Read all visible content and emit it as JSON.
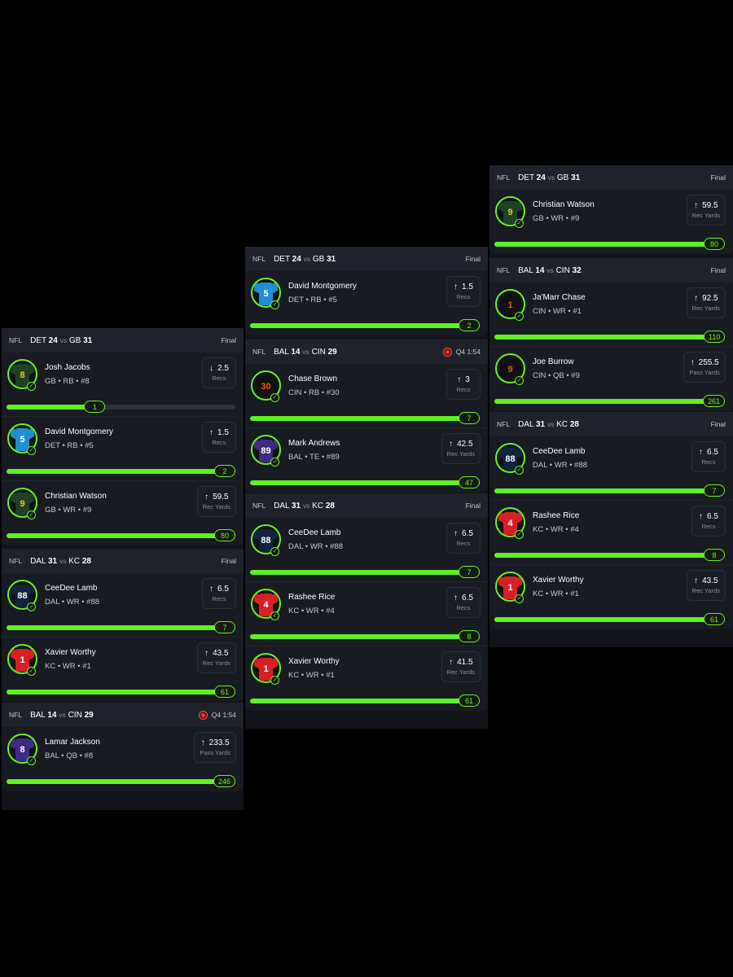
{
  "colors": {
    "background": "#000000",
    "panel": "#121419",
    "accent_green": "#6cf21d",
    "live_red": "#ff2a2a"
  },
  "columns": [
    {
      "games": [
        {
          "league": "NFL",
          "away_team": "DET",
          "away_score": "24",
          "vs": "vs",
          "home_team": "GB",
          "home_score": "31",
          "status": "Final",
          "live": false,
          "players": [
            {
              "name": "Josh Jacobs",
              "meta": "GB • RB • #8",
              "jersey_number": "8",
              "jersey_color": "#1d4227",
              "number_color": "#f5c518",
              "direction": "↓",
              "line": "2.5",
              "unit": "Recs",
              "result": "1",
              "progress": 0.4
            },
            {
              "name": "David Montgomery",
              "meta": "DET • RB • #5",
              "jersey_color": "#1e8fd1",
              "jersey_number": "5",
              "number_color": "#ffffff",
              "direction": "↑",
              "line": "1.5",
              "unit": "Recs",
              "result": "2",
              "progress": 1.0
            },
            {
              "name": "Christian Watson",
              "meta": "GB • WR • #9",
              "jersey_color": "#1d4227",
              "jersey_number": "9",
              "number_color": "#f5c518",
              "direction": "↑",
              "line": "59.5",
              "unit": "Rec Yards",
              "result": "80",
              "progress": 1.0
            }
          ]
        },
        {
          "league": "NFL",
          "away_team": "DAL",
          "away_score": "31",
          "vs": "vs",
          "home_team": "KC",
          "home_score": "28",
          "status": "Final",
          "live": false,
          "players": [
            {
              "name": "CeeDee Lamb",
              "meta": "DAL • WR • #88",
              "jersey_color": "#13233f",
              "jersey_number": "88",
              "number_color": "#ffffff",
              "direction": "↑",
              "line": "6.5",
              "unit": "Recs",
              "result": "7",
              "progress": 1.0
            },
            {
              "name": "Xavier Worthy",
              "meta": "KC • WR • #1",
              "jersey_color": "#d91f26",
              "jersey_number": "1",
              "number_color": "#ffffff",
              "direction": "↑",
              "line": "43.5",
              "unit": "Rec Yards",
              "result": "61",
              "progress": 1.0
            }
          ]
        },
        {
          "league": "NFL",
          "away_team": "BAL",
          "away_score": "14",
          "vs": "vs",
          "home_team": "CIN",
          "home_score": "29",
          "status": "Q4 1:54",
          "live": true,
          "players": [
            {
              "name": "Lamar Jackson",
              "meta": "BAL • QB • #8",
              "jersey_color": "#3f2a84",
              "jersey_number": "8",
              "number_color": "#ffffff",
              "direction": "↑",
              "line": "233.5",
              "unit": "Pass Yards",
              "result": "246",
              "progress": 1.0
            }
          ]
        }
      ]
    },
    {
      "games": [
        {
          "league": "NFL",
          "away_team": "DET",
          "away_score": "24",
          "vs": "vs",
          "home_team": "GB",
          "home_score": "31",
          "status": "Final",
          "live": false,
          "players": [
            {
              "name": "David Montgomery",
              "meta": "DET • RB • #5",
              "jersey_color": "#1e8fd1",
              "jersey_number": "5",
              "number_color": "#ffffff",
              "direction": "↑",
              "line": "1.5",
              "unit": "Recs",
              "result": "2",
              "progress": 1.0
            }
          ]
        },
        {
          "league": "NFL",
          "away_team": "BAL",
          "away_score": "14",
          "vs": "vs",
          "home_team": "CIN",
          "home_score": "29",
          "status": "Q4 1:54",
          "live": true,
          "players": [
            {
              "name": "Chase Brown",
              "meta": "CIN • RB • #30",
              "jersey_color": "#111111",
              "jersey_number": "30",
              "number_color": "#fb4f14",
              "direction": "↑",
              "line": "3",
              "unit": "Recs",
              "result": "7",
              "progress": 1.0
            },
            {
              "name": "Mark Andrews",
              "meta": "BAL • TE • #89",
              "jersey_color": "#3f2a84",
              "jersey_number": "89",
              "number_color": "#ffffff",
              "direction": "↑",
              "line": "42.5",
              "unit": "Rec Yards",
              "result": "47",
              "progress": 1.0
            }
          ]
        },
        {
          "league": "NFL",
          "away_team": "DAL",
          "away_score": "31",
          "vs": "vs",
          "home_team": "KC",
          "home_score": "28",
          "status": "Final",
          "live": false,
          "players": [
            {
              "name": "CeeDee Lamb",
              "meta": "DAL • WR • #88",
              "jersey_color": "#13233f",
              "jersey_number": "88",
              "number_color": "#ffffff",
              "direction": "↑",
              "line": "6.5",
              "unit": "Recs",
              "result": "7",
              "progress": 1.0
            },
            {
              "name": "Rashee Rice",
              "meta": "KC • WR • #4",
              "jersey_color": "#d91f26",
              "jersey_number": "4",
              "number_color": "#ffffff",
              "direction": "↑",
              "line": "6.5",
              "unit": "Recs",
              "result": "8",
              "progress": 1.0
            },
            {
              "name": "Xavier Worthy",
              "meta": "KC • WR • #1",
              "jersey_color": "#d91f26",
              "jersey_number": "1",
              "number_color": "#ffffff",
              "direction": "↑",
              "line": "41.5",
              "unit": "Rec Yards",
              "result": "61",
              "progress": 1.0
            }
          ]
        }
      ]
    },
    {
      "games": [
        {
          "league": "NFL",
          "away_team": "DET",
          "away_score": "24",
          "vs": "vs",
          "home_team": "GB",
          "home_score": "31",
          "status": "Final",
          "live": false,
          "players": [
            {
              "name": "Christian Watson",
              "meta": "GB • WR • #9",
              "jersey_color": "#1d4227",
              "jersey_number": "9",
              "number_color": "#f5c518",
              "direction": "↑",
              "line": "59.5",
              "unit": "Rec Yards",
              "result": "80",
              "progress": 1.0
            }
          ]
        },
        {
          "league": "NFL",
          "away_team": "BAL",
          "away_score": "14",
          "vs": "vs",
          "home_team": "CIN",
          "home_score": "32",
          "status": "Final",
          "live": false,
          "players": [
            {
              "name": "Ja'Marr Chase",
              "meta": "CIN • WR • #1",
              "jersey_color": "#111111",
              "jersey_number": "1",
              "number_color": "#fb4f14",
              "direction": "↑",
              "line": "92.5",
              "unit": "Rec Yards",
              "result": "110",
              "progress": 1.0
            },
            {
              "name": "Joe Burrow",
              "meta": "CIN • QB • #9",
              "jersey_color": "#111111",
              "jersey_number": "9",
              "number_color": "#fb4f14",
              "direction": "↑",
              "line": "255.5",
              "unit": "Pass Yards",
              "result": "261",
              "progress": 1.0
            }
          ]
        },
        {
          "league": "NFL",
          "away_team": "DAL",
          "away_score": "31",
          "vs": "vs",
          "home_team": "KC",
          "home_score": "28",
          "status": "Final",
          "live": false,
          "players": [
            {
              "name": "CeeDee Lamb",
              "meta": "DAL • WR • #88",
              "jersey_color": "#13233f",
              "jersey_number": "88",
              "number_color": "#ffffff",
              "direction": "↑",
              "line": "6.5",
              "unit": "Recs",
              "result": "7",
              "progress": 1.0
            },
            {
              "name": "Rashee Rice",
              "meta": "KC • WR • #4",
              "jersey_color": "#d91f26",
              "jersey_number": "4",
              "number_color": "#ffffff",
              "direction": "↑",
              "line": "6.5",
              "unit": "Recs",
              "result": "8",
              "progress": 1.0
            },
            {
              "name": "Xavier Worthy",
              "meta": "KC • WR • #1",
              "jersey_color": "#d91f26",
              "jersey_number": "1",
              "number_color": "#ffffff",
              "direction": "↑",
              "line": "43.5",
              "unit": "Rec Yards",
              "result": "61",
              "progress": 1.0
            }
          ]
        }
      ]
    }
  ]
}
